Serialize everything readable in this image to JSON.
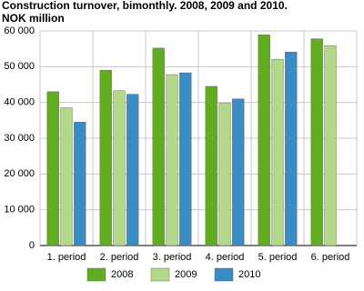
{
  "chart_data": {
    "type": "bar",
    "title": "Construction turnover, bimonthly. 2008, 2009 and 2010.",
    "subtitle": "NOK million",
    "categories": [
      "1. period",
      "2. period",
      "3. period",
      "4. period",
      "5. period",
      "6. period"
    ],
    "series": [
      {
        "name": "2008",
        "color": "#62ad1f",
        "values": [
          43000,
          49000,
          55200,
          44500,
          58900,
          57800
        ]
      },
      {
        "name": "2009",
        "color": "#b3d88a",
        "values": [
          38500,
          43300,
          47800,
          39800,
          52100,
          55900
        ]
      },
      {
        "name": "2010",
        "color": "#3a8cc4",
        "values": [
          34500,
          42300,
          48300,
          41000,
          54100,
          null
        ]
      }
    ],
    "ylim": [
      0,
      60000
    ],
    "yticks": [
      {
        "value": 0,
        "label": "0"
      },
      {
        "value": 10000,
        "label": "10 000"
      },
      {
        "value": 20000,
        "label": "20 000"
      },
      {
        "value": 30000,
        "label": "30 000"
      },
      {
        "value": 40000,
        "label": "40 000"
      },
      {
        "value": 50000,
        "label": "50 000"
      },
      {
        "value": 60000,
        "label": "60 000"
      }
    ],
    "grid": true,
    "legend": "bottom"
  }
}
